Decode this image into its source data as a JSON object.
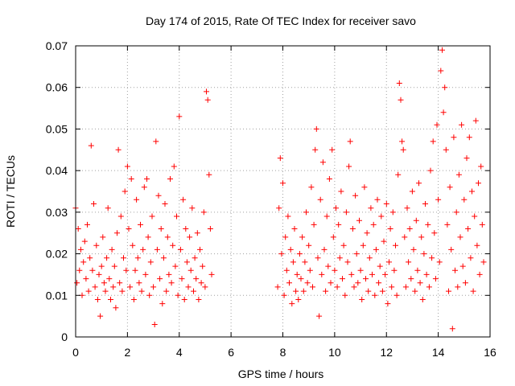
{
  "chart_data": {
    "type": "scatter",
    "title": "Day 174 of 2015, Rate Of TEC Index for receiver savo",
    "xlabel": "GPS time / hours",
    "ylabel": "ROTI / TECUs",
    "xlim": [
      0,
      16
    ],
    "ylim": [
      0,
      0.07
    ],
    "x_ticks": [
      0,
      2,
      4,
      6,
      8,
      10,
      12,
      14,
      16
    ],
    "x_tick_labels": [
      "0",
      "2",
      "4",
      "6",
      "8",
      "10",
      "12",
      "14",
      "16"
    ],
    "y_ticks": [
      0,
      0.01,
      0.02,
      0.03,
      0.04,
      0.05,
      0.06,
      0.07
    ],
    "y_tick_labels": [
      "0",
      "0.01",
      "0.02",
      "0.03",
      "0.04",
      "0.05",
      "0.06",
      "0.07"
    ],
    "grid": true,
    "marker": "+",
    "color": "#ff0000",
    "series": [
      {
        "name": "ROTI",
        "points": [
          [
            0.0,
            0.031
          ],
          [
            0.05,
            0.013
          ],
          [
            0.1,
            0.026
          ],
          [
            0.15,
            0.016
          ],
          [
            0.2,
            0.021
          ],
          [
            0.25,
            0.01
          ],
          [
            0.3,
            0.018
          ],
          [
            0.35,
            0.023
          ],
          [
            0.4,
            0.014
          ],
          [
            0.45,
            0.027
          ],
          [
            0.5,
            0.011
          ],
          [
            0.55,
            0.019
          ],
          [
            0.6,
            0.046
          ],
          [
            0.65,
            0.016
          ],
          [
            0.7,
            0.032
          ],
          [
            0.75,
            0.012
          ],
          [
            0.8,
            0.022
          ],
          [
            0.85,
            0.009
          ],
          [
            0.9,
            0.015
          ],
          [
            0.95,
            0.005
          ],
          [
            1.0,
            0.017
          ],
          [
            1.05,
            0.024
          ],
          [
            1.1,
            0.013
          ],
          [
            1.15,
            0.011
          ],
          [
            1.2,
            0.019
          ],
          [
            1.25,
            0.031
          ],
          [
            1.3,
            0.014
          ],
          [
            1.35,
            0.009
          ],
          [
            1.4,
            0.021
          ],
          [
            1.45,
            0.012
          ],
          [
            1.5,
            0.017
          ],
          [
            1.55,
            0.007
          ],
          [
            1.6,
            0.025
          ],
          [
            1.65,
            0.045
          ],
          [
            1.7,
            0.013
          ],
          [
            1.75,
            0.029
          ],
          [
            1.8,
            0.011
          ],
          [
            1.85,
            0.019
          ],
          [
            1.9,
            0.035
          ],
          [
            1.95,
            0.016
          ],
          [
            2.0,
            0.041
          ],
          [
            2.05,
            0.026
          ],
          [
            2.1,
            0.012
          ],
          [
            2.15,
            0.038
          ],
          [
            2.2,
            0.022
          ],
          [
            2.25,
            0.009
          ],
          [
            2.3,
            0.016
          ],
          [
            2.35,
            0.033
          ],
          [
            2.4,
            0.019
          ],
          [
            2.45,
            0.013
          ],
          [
            2.5,
            0.027
          ],
          [
            2.55,
            0.011
          ],
          [
            2.6,
            0.021
          ],
          [
            2.65,
            0.036
          ],
          [
            2.7,
            0.015
          ],
          [
            2.75,
            0.038
          ],
          [
            2.8,
            0.024
          ],
          [
            2.85,
            0.01
          ],
          [
            2.9,
            0.018
          ],
          [
            2.95,
            0.029
          ],
          [
            3.0,
            0.012
          ],
          [
            3.05,
            0.003
          ],
          [
            3.1,
            0.047
          ],
          [
            3.15,
            0.021
          ],
          [
            3.2,
            0.034
          ],
          [
            3.25,
            0.014
          ],
          [
            3.3,
            0.026
          ],
          [
            3.35,
            0.008
          ],
          [
            3.4,
            0.019
          ],
          [
            3.45,
            0.032
          ],
          [
            3.5,
            0.011
          ],
          [
            3.55,
            0.024
          ],
          [
            3.6,
            0.015
          ],
          [
            3.65,
            0.038
          ],
          [
            3.7,
            0.013
          ],
          [
            3.75,
            0.022
          ],
          [
            3.8,
            0.041
          ],
          [
            3.85,
            0.017
          ],
          [
            3.9,
            0.029
          ],
          [
            3.95,
            0.01
          ],
          [
            4.0,
            0.053
          ],
          [
            4.05,
            0.021
          ],
          [
            4.1,
            0.014
          ],
          [
            4.15,
            0.033
          ],
          [
            4.2,
            0.009
          ],
          [
            4.25,
            0.026
          ],
          [
            4.3,
            0.018
          ],
          [
            4.35,
            0.012
          ],
          [
            4.4,
            0.024
          ],
          [
            4.45,
            0.016
          ],
          [
            4.5,
            0.031
          ],
          [
            4.55,
            0.011
          ],
          [
            4.6,
            0.019
          ],
          [
            4.65,
            0.014
          ],
          [
            4.7,
            0.025
          ],
          [
            4.75,
            0.009
          ],
          [
            4.8,
            0.021
          ],
          [
            4.85,
            0.013
          ],
          [
            4.9,
            0.017
          ],
          [
            4.95,
            0.03
          ],
          [
            5.0,
            0.012
          ],
          [
            5.05,
            0.059
          ],
          [
            5.1,
            0.057
          ],
          [
            5.15,
            0.039
          ],
          [
            5.2,
            0.026
          ],
          [
            5.25,
            0.015
          ],
          [
            7.8,
            0.012
          ],
          [
            7.85,
            0.031
          ],
          [
            7.9,
            0.043
          ],
          [
            7.95,
            0.02
          ],
          [
            8.0,
            0.037
          ],
          [
            8.05,
            0.01
          ],
          [
            8.1,
            0.024
          ],
          [
            8.15,
            0.016
          ],
          [
            8.2,
            0.029
          ],
          [
            8.25,
            0.013
          ],
          [
            8.3,
            0.021
          ],
          [
            8.35,
            0.008
          ],
          [
            8.4,
            0.018
          ],
          [
            8.45,
            0.026
          ],
          [
            8.5,
            0.011
          ],
          [
            8.55,
            0.015
          ],
          [
            8.6,
            0.009
          ],
          [
            8.65,
            0.02
          ],
          [
            8.7,
            0.014
          ],
          [
            8.75,
            0.024
          ],
          [
            8.8,
            0.011
          ],
          [
            8.85,
            0.018
          ],
          [
            8.9,
            0.03
          ],
          [
            8.95,
            0.013
          ],
          [
            9.0,
            0.022
          ],
          [
            9.05,
            0.016
          ],
          [
            9.1,
            0.036
          ],
          [
            9.15,
            0.012
          ],
          [
            9.2,
            0.027
          ],
          [
            9.25,
            0.045
          ],
          [
            9.3,
            0.05
          ],
          [
            9.35,
            0.019
          ],
          [
            9.4,
            0.005
          ],
          [
            9.45,
            0.033
          ],
          [
            9.5,
            0.015
          ],
          [
            9.55,
            0.042
          ],
          [
            9.6,
            0.021
          ],
          [
            9.65,
            0.011
          ],
          [
            9.7,
            0.029
          ],
          [
            9.75,
            0.017
          ],
          [
            9.8,
            0.038
          ],
          [
            9.85,
            0.013
          ],
          [
            9.9,
            0.045
          ],
          [
            9.95,
            0.024
          ],
          [
            10.0,
            0.016
          ],
          [
            10.05,
            0.031
          ],
          [
            10.1,
            0.012
          ],
          [
            10.15,
            0.027
          ],
          [
            10.2,
            0.019
          ],
          [
            10.25,
            0.035
          ],
          [
            10.3,
            0.014
          ],
          [
            10.35,
            0.022
          ],
          [
            10.4,
            0.01
          ],
          [
            10.45,
            0.03
          ],
          [
            10.5,
            0.018
          ],
          [
            10.55,
            0.041
          ],
          [
            10.6,
            0.047
          ],
          [
            10.65,
            0.015
          ],
          [
            10.7,
            0.026
          ],
          [
            10.75,
            0.012
          ],
          [
            10.8,
            0.034
          ],
          [
            10.85,
            0.02
          ],
          [
            10.9,
            0.013
          ],
          [
            10.95,
            0.028
          ],
          [
            11.0,
            0.016
          ],
          [
            11.05,
            0.009
          ],
          [
            11.1,
            0.022
          ],
          [
            11.15,
            0.036
          ],
          [
            11.2,
            0.014
          ],
          [
            11.25,
            0.025
          ],
          [
            11.3,
            0.011
          ],
          [
            11.35,
            0.019
          ],
          [
            11.4,
            0.031
          ],
          [
            11.45,
            0.015
          ],
          [
            11.5,
            0.027
          ],
          [
            11.55,
            0.01
          ],
          [
            11.6,
            0.021
          ],
          [
            11.65,
            0.033
          ],
          [
            11.7,
            0.013
          ],
          [
            11.75,
            0.017
          ],
          [
            11.8,
            0.029
          ],
          [
            11.85,
            0.011
          ],
          [
            11.9,
            0.023
          ],
          [
            11.95,
            0.015
          ],
          [
            12.0,
            0.032
          ],
          [
            12.05,
            0.008
          ],
          [
            12.1,
            0.018
          ],
          [
            12.15,
            0.026
          ],
          [
            12.2,
            0.012
          ],
          [
            12.25,
            0.03
          ],
          [
            12.3,
            0.016
          ],
          [
            12.35,
            0.022
          ],
          [
            12.4,
            0.01
          ],
          [
            12.45,
            0.039
          ],
          [
            12.5,
            0.061
          ],
          [
            12.55,
            0.057
          ],
          [
            12.6,
            0.047
          ],
          [
            12.65,
            0.045
          ],
          [
            12.7,
            0.024
          ],
          [
            12.75,
            0.012
          ],
          [
            12.8,
            0.031
          ],
          [
            12.85,
            0.018
          ],
          [
            12.9,
            0.026
          ],
          [
            12.95,
            0.014
          ],
          [
            13.0,
            0.035
          ],
          [
            13.05,
            0.021
          ],
          [
            13.1,
            0.011
          ],
          [
            13.15,
            0.028
          ],
          [
            13.2,
            0.016
          ],
          [
            13.25,
            0.037
          ],
          [
            13.3,
            0.013
          ],
          [
            13.35,
            0.024
          ],
          [
            13.4,
            0.009
          ],
          [
            13.45,
            0.02
          ],
          [
            13.5,
            0.032
          ],
          [
            13.55,
            0.015
          ],
          [
            13.6,
            0.027
          ],
          [
            13.65,
            0.012
          ],
          [
            13.7,
            0.04
          ],
          [
            13.75,
            0.019
          ],
          [
            13.8,
            0.047
          ],
          [
            13.85,
            0.025
          ],
          [
            13.9,
            0.014
          ],
          [
            13.95,
            0.051
          ],
          [
            14.0,
            0.033
          ],
          [
            14.05,
            0.018
          ],
          [
            14.1,
            0.064
          ],
          [
            14.15,
            0.069
          ],
          [
            14.2,
            0.054
          ],
          [
            14.25,
            0.06
          ],
          [
            14.3,
            0.045
          ],
          [
            14.35,
            0.027
          ],
          [
            14.4,
            0.011
          ],
          [
            14.45,
            0.036
          ],
          [
            14.5,
            0.021
          ],
          [
            14.55,
            0.002
          ],
          [
            14.6,
            0.048
          ],
          [
            14.65,
            0.016
          ],
          [
            14.7,
            0.03
          ],
          [
            14.75,
            0.012
          ],
          [
            14.8,
            0.039
          ],
          [
            14.85,
            0.024
          ],
          [
            14.9,
            0.051
          ],
          [
            14.95,
            0.017
          ],
          [
            15.0,
            0.033
          ],
          [
            15.05,
            0.013
          ],
          [
            15.1,
            0.043
          ],
          [
            15.15,
            0.026
          ],
          [
            15.2,
            0.048
          ],
          [
            15.25,
            0.019
          ],
          [
            15.3,
            0.035
          ],
          [
            15.35,
            0.011
          ],
          [
            15.4,
            0.029
          ],
          [
            15.45,
            0.052
          ],
          [
            15.5,
            0.022
          ],
          [
            15.55,
            0.037
          ],
          [
            15.6,
            0.015
          ],
          [
            15.65,
            0.041
          ],
          [
            15.7,
            0.027
          ],
          [
            15.75,
            0.018
          ]
        ]
      }
    ]
  }
}
